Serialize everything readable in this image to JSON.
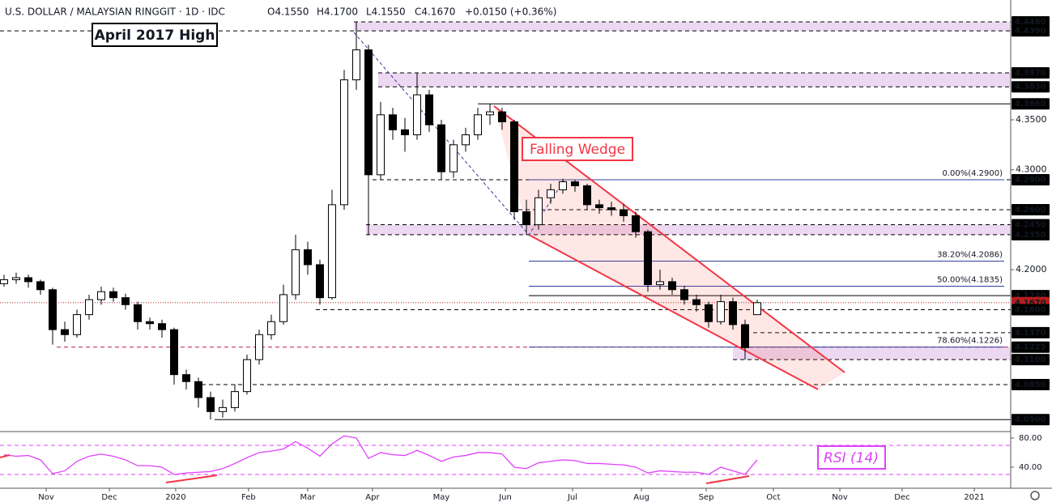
{
  "header": {
    "title": "U.S. DOLLAR / MALAYSIAN RINGGIT · 1D · IDC",
    "ohlc": [
      "O4.1550",
      "H4.1700",
      "L4.1550",
      "C4.1670"
    ],
    "change": "+0.0150 (+0.36%)"
  },
  "chart_data": [
    {
      "type": "candlestick",
      "annotations": {
        "high": "April 2017 High",
        "pattern": "Falling Wedge"
      },
      "ylim": [
        4.038,
        4.4537
      ],
      "xlim": [
        -0.333,
        82.867
      ],
      "xticks": [
        {
          "value": 3.47,
          "label": "Nov"
        },
        {
          "value": 8.67,
          "label": "Dec"
        },
        {
          "value": 14.13,
          "label": "2020"
        },
        {
          "value": 20.13,
          "label": "Feb"
        },
        {
          "value": 25,
          "label": "Mar"
        },
        {
          "value": 30.33,
          "label": "Apr"
        },
        {
          "value": 36,
          "label": "May"
        },
        {
          "value": 41.27,
          "label": "Jun"
        },
        {
          "value": 46.8,
          "label": "Jul"
        },
        {
          "value": 52.47,
          "label": "Aug"
        },
        {
          "value": 57.8,
          "label": "Sep"
        },
        {
          "value": 63.33,
          "label": "Oct"
        },
        {
          "value": 68.8,
          "label": "Nov"
        },
        {
          "value": 73.93,
          "label": "Dec"
        },
        {
          "value": 79.87,
          "label": "2021"
        }
      ],
      "yticks": [
        {
          "value": 4.35,
          "label": "4.3500"
        },
        {
          "value": 4.3,
          "label": "4.3000"
        },
        {
          "value": 4.2,
          "label": "4.2000"
        }
      ],
      "levels": [
        {
          "value": 4.448,
          "label": "4.4480"
        },
        {
          "value": 4.439,
          "label": "4.4390"
        },
        {
          "value": 4.397,
          "label": "4.3970"
        },
        {
          "value": 4.383,
          "label": "4.3830"
        },
        {
          "value": 4.366,
          "label": "4.3660"
        },
        {
          "value": 4.29,
          "label": "4.2900"
        },
        {
          "value": 4.26,
          "label": "4.2600"
        },
        {
          "value": 4.245,
          "label": "4.2450"
        },
        {
          "value": 4.235,
          "label": "4.2350"
        },
        {
          "value": 4.174,
          "label": "4.1740"
        },
        {
          "value": 4.167,
          "label": "4.1670"
        },
        {
          "value": 4.16,
          "label": "4.1600"
        },
        {
          "value": 4.137,
          "label": "4.1370"
        },
        {
          "value": 4.1225,
          "label": "4.1225"
        },
        {
          "value": 4.11,
          "label": "4.1100"
        },
        {
          "value": 4.085,
          "label": "4.0850"
        },
        {
          "value": 4.05,
          "label": "4.0500"
        }
      ],
      "fib": [
        {
          "value": 4.29,
          "label": "0.00%(4.2900)"
        },
        {
          "value": 4.2086,
          "label": "38.20%(4.2086)"
        },
        {
          "value": 4.1835,
          "label": "50.00%(4.1835)"
        },
        {
          "value": 4.1226,
          "label": "78.60%(4.1226)"
        }
      ],
      "ohlc": [
        [
          4.186,
          4.195,
          4.183,
          4.19
        ],
        [
          4.19,
          4.197,
          4.186,
          4.192
        ],
        [
          4.192,
          4.195,
          4.182,
          4.188
        ],
        [
          4.188,
          4.19,
          4.175,
          4.18
        ],
        [
          4.18,
          4.182,
          4.125,
          4.14
        ],
        [
          4.14,
          4.148,
          4.128,
          4.135
        ],
        [
          4.135,
          4.16,
          4.132,
          4.155
        ],
        [
          4.155,
          4.175,
          4.15,
          4.17
        ],
        [
          4.17,
          4.183,
          4.165,
          4.178
        ],
        [
          4.178,
          4.182,
          4.168,
          4.172
        ],
        [
          4.172,
          4.176,
          4.16,
          4.165
        ],
        [
          4.165,
          4.168,
          4.14,
          4.148
        ],
        [
          4.148,
          4.152,
          4.14,
          4.146
        ],
        [
          4.146,
          4.15,
          4.132,
          4.14
        ],
        [
          4.14,
          4.142,
          4.085,
          4.095
        ],
        [
          4.095,
          4.1,
          4.08,
          4.088
        ],
        [
          4.088,
          4.092,
          4.062,
          4.072
        ],
        [
          4.072,
          4.078,
          4.05,
          4.058
        ],
        [
          4.058,
          4.07,
          4.052,
          4.062
        ],
        [
          4.062,
          4.085,
          4.058,
          4.078
        ],
        [
          4.078,
          4.115,
          4.075,
          4.11
        ],
        [
          4.11,
          4.14,
          4.105,
          4.135
        ],
        [
          4.135,
          4.155,
          4.13,
          4.148
        ],
        [
          4.148,
          4.185,
          4.145,
          4.175
        ],
        [
          4.175,
          4.235,
          4.17,
          4.22
        ],
        [
          4.22,
          4.228,
          4.195,
          4.205
        ],
        [
          4.205,
          4.21,
          4.165,
          4.172
        ],
        [
          4.172,
          4.28,
          4.17,
          4.265
        ],
        [
          4.265,
          4.4,
          4.26,
          4.39
        ],
        [
          4.39,
          4.448,
          4.38,
          4.42
        ],
        [
          4.42,
          4.425,
          4.235,
          4.295
        ],
        [
          4.295,
          4.368,
          4.29,
          4.355
        ],
        [
          4.355,
          4.362,
          4.33,
          4.34
        ],
        [
          4.34,
          4.352,
          4.318,
          4.335
        ],
        [
          4.335,
          4.397,
          4.33,
          4.375
        ],
        [
          4.375,
          4.38,
          4.338,
          4.345
        ],
        [
          4.345,
          4.35,
          4.29,
          4.298
        ],
        [
          4.298,
          4.33,
          4.292,
          4.325
        ],
        [
          4.325,
          4.342,
          4.318,
          4.335
        ],
        [
          4.335,
          4.362,
          4.33,
          4.355
        ],
        [
          4.355,
          4.366,
          4.345,
          4.358
        ],
        [
          4.358,
          4.362,
          4.34,
          4.348
        ],
        [
          4.348,
          4.35,
          4.25,
          4.258
        ],
        [
          4.258,
          4.27,
          4.235,
          4.245
        ],
        [
          4.245,
          4.28,
          4.24,
          4.272
        ],
        [
          4.272,
          4.286,
          4.266,
          4.28
        ],
        [
          4.28,
          4.291,
          4.276,
          4.288
        ],
        [
          4.288,
          4.29,
          4.278,
          4.284
        ],
        [
          4.284,
          4.286,
          4.26,
          4.265
        ],
        [
          4.265,
          4.27,
          4.256,
          4.262
        ],
        [
          4.262,
          4.268,
          4.254,
          4.26
        ],
        [
          4.26,
          4.266,
          4.248,
          4.254
        ],
        [
          4.254,
          4.258,
          4.232,
          4.238
        ],
        [
          4.238,
          4.24,
          4.178,
          4.185
        ],
        [
          4.185,
          4.2,
          4.18,
          4.188
        ],
        [
          4.188,
          4.192,
          4.175,
          4.18
        ],
        [
          4.18,
          4.184,
          4.165,
          4.17
        ],
        [
          4.17,
          4.175,
          4.158,
          4.165
        ],
        [
          4.165,
          4.168,
          4.142,
          4.148
        ],
        [
          4.148,
          4.175,
          4.145,
          4.168
        ],
        [
          4.168,
          4.172,
          4.14,
          4.145
        ],
        [
          4.145,
          4.15,
          4.11,
          4.122
        ],
        [
          4.155,
          4.17,
          4.155,
          4.167
        ]
      ]
    },
    {
      "type": "line",
      "title": "RSI (14)",
      "color": "#e040fb",
      "ylim": [
        14.4,
        84.4
      ],
      "yticks": [
        {
          "value": 40,
          "label": "40.00"
        },
        {
          "value": 80,
          "label": "80.00"
        }
      ],
      "bands": [
        30,
        70
      ],
      "values": [
        57,
        55,
        56,
        50,
        31,
        35,
        48,
        55,
        58,
        55,
        50,
        42,
        42,
        40,
        30,
        32,
        33,
        34,
        38,
        45,
        53,
        60,
        62,
        65,
        75,
        66,
        55,
        72,
        83,
        80,
        52,
        60,
        57,
        56,
        63,
        56,
        48,
        54,
        56,
        60,
        60,
        58,
        40,
        38,
        46,
        48,
        50,
        49,
        45,
        45,
        44,
        43,
        40,
        32,
        35,
        34,
        33,
        33,
        30,
        40,
        35,
        30,
        50
      ]
    }
  ]
}
